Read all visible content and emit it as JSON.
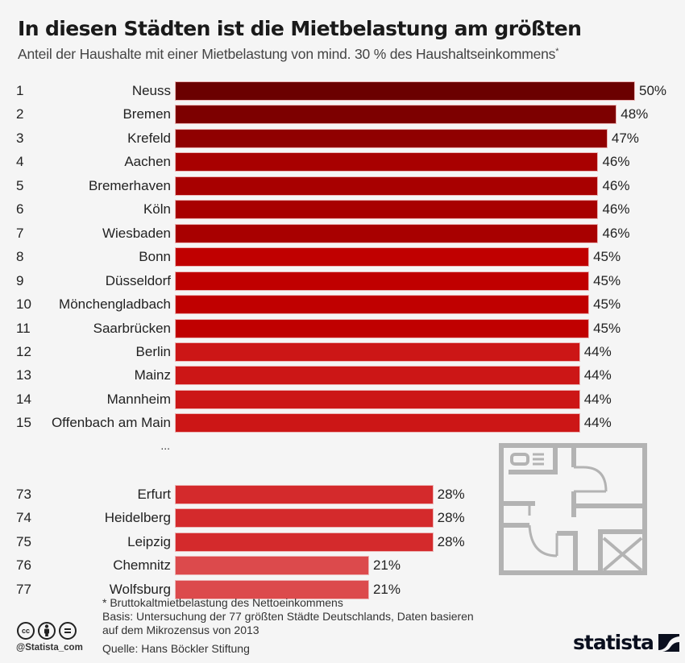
{
  "header": {
    "title": "In diesen Städten ist die Mietbelastung am größten",
    "subtitle": "Anteil der Haushalte mit einer Mietbelastung von mind. 30 % des Haushaltseinkommens",
    "subtitle_marker": "*"
  },
  "chart_data": {
    "type": "bar",
    "orientation": "horizontal",
    "title": "In diesen Städten ist die Mietbelastung am größten",
    "subtitle": "Anteil der Haushalte mit einer Mietbelastung von mind. 30 % des Haushaltseinkommens*",
    "xlabel": "",
    "ylabel": "",
    "unit": "%",
    "xlim": [
      0,
      50
    ],
    "grid": false,
    "legend": "none",
    "gap_marker": "...",
    "gap_after_index": 14,
    "rows": [
      {
        "rank": "1",
        "city": "Neuss",
        "value": 50,
        "label": "50%",
        "color": "#6b0000"
      },
      {
        "rank": "2",
        "city": "Bremen",
        "value": 48,
        "label": "48%",
        "color": "#7d0000"
      },
      {
        "rank": "3",
        "city": "Krefeld",
        "value": 47,
        "label": "47%",
        "color": "#900000"
      },
      {
        "rank": "4",
        "city": "Aachen",
        "value": 46,
        "label": "46%",
        "color": "#a80000"
      },
      {
        "rank": "5",
        "city": "Bremerhaven",
        "value": 46,
        "label": "46%",
        "color": "#a80000"
      },
      {
        "rank": "6",
        "city": "Köln",
        "value": 46,
        "label": "46%",
        "color": "#a80000"
      },
      {
        "rank": "7",
        "city": "Wiesbaden",
        "value": 46,
        "label": "46%",
        "color": "#a80000"
      },
      {
        "rank": "8",
        "city": "Bonn",
        "value": 45,
        "label": "45%",
        "color": "#c00000"
      },
      {
        "rank": "9",
        "city": "Düsseldorf",
        "value": 45,
        "label": "45%",
        "color": "#c00000"
      },
      {
        "rank": "10",
        "city": "Mönchengladbach",
        "value": 45,
        "label": "45%",
        "color": "#c00000"
      },
      {
        "rank": "11",
        "city": "Saarbrücken",
        "value": 45,
        "label": "45%",
        "color": "#c00000"
      },
      {
        "rank": "12",
        "city": "Berlin",
        "value": 44,
        "label": "44%",
        "color": "#cc1616"
      },
      {
        "rank": "13",
        "city": "Mainz",
        "value": 44,
        "label": "44%",
        "color": "#cc1616"
      },
      {
        "rank": "14",
        "city": "Mannheim",
        "value": 44,
        "label": "44%",
        "color": "#cc1616"
      },
      {
        "rank": "15",
        "city": "Offenbach am Main",
        "value": 44,
        "label": "44%",
        "color": "#cc1616"
      },
      {
        "rank": "73",
        "city": "Erfurt",
        "value": 28,
        "label": "28%",
        "color": "#d42a2c"
      },
      {
        "rank": "74",
        "city": "Heidelberg",
        "value": 28,
        "label": "28%",
        "color": "#d42a2c"
      },
      {
        "rank": "75",
        "city": "Leipzig",
        "value": 28,
        "label": "28%",
        "color": "#d42a2c"
      },
      {
        "rank": "76",
        "city": "Chemnitz",
        "value": 21,
        "label": "21%",
        "color": "#dc4a4c"
      },
      {
        "rank": "77",
        "city": "Wolfsburg",
        "value": 21,
        "label": "21%",
        "color": "#dc4a4c"
      }
    ]
  },
  "decoration": {
    "icon": "floor-plan-icon",
    "color": "#b3b3b3"
  },
  "footer": {
    "note": "* Bruttokaltmietbelastung des Nettoeinkommens",
    "basis_line1": "Basis: Untersuchung der 77 größten Städte Deutschlands, Daten basieren",
    "basis_line2": "auf dem Mikrozensus von 2013",
    "source": "Quelle: Hans Böckler Stiftung",
    "handle": "@Statista_com",
    "license_icons": [
      "cc-icon",
      "attribution-icon",
      "no-derivatives-icon"
    ],
    "cc_label": "cc",
    "nd_label": "=",
    "logo_text": "statista"
  }
}
